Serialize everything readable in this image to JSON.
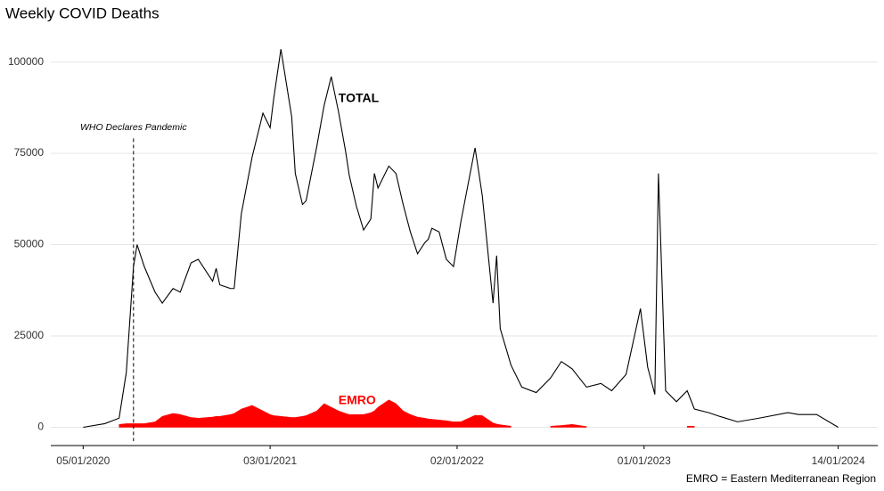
{
  "chart_data": {
    "type": "line",
    "title": "Weekly COVID Deaths",
    "caption": "EMRO = Eastern Mediterranean Region",
    "x": [
      "05/01/2020",
      "16/02/2020",
      "15/03/2020",
      "29/03/2020",
      "12/04/2020",
      "19/04/2020",
      "03/05/2020",
      "24/05/2020",
      "07/06/2020",
      "28/06/2020",
      "12/07/2020",
      "02/08/2020",
      "16/08/2020",
      "13/09/2020",
      "20/09/2020",
      "27/09/2020",
      "18/10/2020",
      "25/10/2020",
      "08/11/2020",
      "29/11/2020",
      "20/12/2020",
      "03/01/2021",
      "10/01/2021",
      "24/01/2021",
      "14/02/2021",
      "21/02/2021",
      "07/03/2021",
      "14/03/2021",
      "04/04/2021",
      "18/04/2021",
      "02/05/2021",
      "16/05/2021",
      "30/05/2021",
      "06/06/2021",
      "20/06/2021",
      "04/07/2021",
      "18/07/2021",
      "25/07/2021",
      "01/08/2021",
      "22/08/2021",
      "05/09/2021",
      "19/09/2021",
      "03/10/2021",
      "17/10/2021",
      "31/10/2021",
      "07/11/2021",
      "14/11/2021",
      "28/11/2021",
      "12/12/2021",
      "26/12/2021",
      "09/01/2022",
      "06/02/2022",
      "20/02/2022",
      "13/03/2022",
      "20/03/2022",
      "27/03/2022",
      "17/04/2022",
      "08/05/2022",
      "05/06/2022",
      "03/07/2022",
      "24/07/2022",
      "14/08/2022",
      "11/09/2022",
      "09/10/2022",
      "30/10/2022",
      "27/11/2022",
      "25/12/2022",
      "08/01/2023",
      "22/01/2023",
      "29/01/2023",
      "12/02/2023",
      "05/03/2023",
      "26/03/2023",
      "09/04/2023",
      "07/05/2023",
      "28/05/2023",
      "02/07/2023",
      "13/08/2023",
      "08/10/2023",
      "29/10/2023",
      "03/12/2023",
      "14/01/2024"
    ],
    "series": [
      {
        "name": "TOTAL",
        "color": "#000000",
        "style": "line",
        "values": [
          0,
          1000,
          2500,
          15000,
          44000,
          50000,
          44000,
          37000,
          34000,
          38000,
          37000,
          45000,
          46000,
          40000,
          43500,
          39000,
          38000,
          38000,
          58500,
          74000,
          86000,
          82000,
          90000,
          103500,
          85000,
          69500,
          61000,
          62000,
          77000,
          88000,
          96000,
          86500,
          75500,
          69000,
          60500,
          54000,
          57000,
          69500,
          65500,
          71500,
          69500,
          61000,
          53500,
          47500,
          50500,
          51500,
          54500,
          53500,
          46000,
          44000,
          56000,
          76500,
          63500,
          34000,
          47000,
          27000,
          17000,
          11000,
          9500,
          13500,
          18000,
          16000,
          11000,
          12000,
          10000,
          14500,
          32500,
          16500,
          9000,
          69500,
          10000,
          7000,
          10000,
          5000,
          4000,
          3000,
          1500,
          2500,
          4000,
          3500,
          3500,
          0
        ]
      },
      {
        "name": "EMRO",
        "color": "#ff0000",
        "style": "area",
        "values": [
          null,
          null,
          800,
          1000,
          1000,
          1000,
          1000,
          1500,
          3000,
          3800,
          3500,
          2700,
          2500,
          2800,
          3000,
          3000,
          3500,
          3800,
          5000,
          6000,
          4500,
          3500,
          3200,
          3000,
          2700,
          2700,
          3000,
          3200,
          4500,
          6500,
          5500,
          4500,
          3800,
          3500,
          3500,
          3500,
          4000,
          4500,
          5500,
          7500,
          6500,
          4500,
          3500,
          2800,
          2500,
          2300,
          2200,
          2000,
          1800,
          1500,
          1500,
          3300,
          3200,
          1200,
          900,
          700,
          300,
          null,
          null,
          300,
          500,
          800,
          200,
          null,
          null,
          null,
          null,
          null,
          null,
          null,
          null,
          null,
          300,
          300,
          null,
          null,
          null,
          null,
          null,
          null,
          null,
          null
        ]
      }
    ],
    "series_labels": [
      {
        "series": 0,
        "x": "16/05/2021",
        "y": 90000
      },
      {
        "series": 1,
        "x": "16/05/2021",
        "y": 7300
      }
    ],
    "annotation": {
      "text": "WHO Declares Pandemic",
      "x": "12/04/2020",
      "y": 82000
    },
    "xlim": [
      "03/11/2019",
      "31/03/2024"
    ],
    "xticks": [
      "05/01/2020",
      "03/01/2021",
      "02/01/2022",
      "01/01/2023",
      "14/01/2024"
    ],
    "ylim": [
      -5000,
      106000
    ],
    "yticks": [
      0,
      25000,
      50000,
      75000,
      100000
    ],
    "grid": true
  }
}
